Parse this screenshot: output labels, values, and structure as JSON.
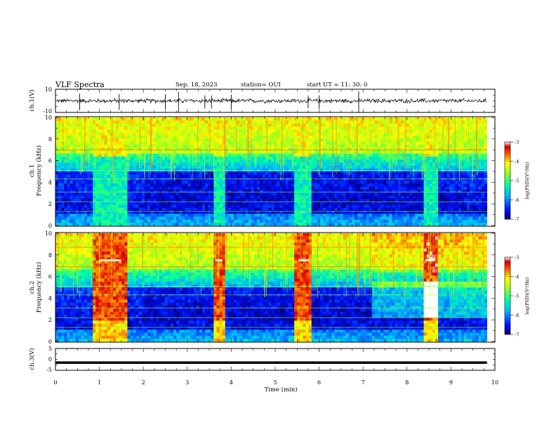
{
  "header": {
    "title": "VLF Spectra",
    "date": "Sep. 18, 2023",
    "station": "station= OUI",
    "start": "start  UT =   11: 30: 0"
  },
  "colorbar": {
    "label": "log(PSD)(V²/Hz)",
    "ticks": [
      "-3",
      "-4",
      "-5",
      "-6",
      "-7"
    ]
  },
  "chart_data": [
    {
      "type": "line",
      "panel": "ch1-waveform",
      "ylabel": "ch.1(V)",
      "ylim": [
        -10,
        10
      ],
      "yticks": [
        "10",
        "-10"
      ],
      "xlim": [
        0,
        10
      ],
      "series": [
        {
          "baseline": 0,
          "typical_amplitude": 1.5,
          "spikes_x": [
            0.55,
            1.45,
            2.5,
            2.8,
            3.4,
            3.55,
            4.0,
            5.75,
            6.0,
            6.9
          ]
        }
      ]
    },
    {
      "type": "heatmap",
      "panel": "ch1-spectrogram",
      "ylabel": "ch.1\nFrequency (kHz)",
      "ylim": [
        0,
        10
      ],
      "yticks": [
        "0",
        "2",
        "4",
        "6",
        "8",
        "10"
      ],
      "xlim": [
        0,
        10
      ],
      "clim": [
        -7,
        -3
      ],
      "bursts_min": [
        [
          0.85,
          1.65
        ],
        [
          3.6,
          3.85
        ],
        [
          5.45,
          5.85
        ],
        [
          8.35,
          8.7
        ]
      ],
      "bands_khz": [
        7.0,
        5.1,
        4.3,
        3.1,
        2.2,
        1.3
      ]
    },
    {
      "type": "heatmap",
      "panel": "ch2-spectrogram",
      "ylabel": "ch.2\nFrequency (kHz)",
      "ylim": [
        0,
        10
      ],
      "yticks": [
        "0",
        "2",
        "4",
        "6",
        "8",
        "10"
      ],
      "xlim": [
        0,
        10
      ],
      "clim": [
        -7,
        -3
      ],
      "bursts_min": [
        [
          0.85,
          1.65
        ],
        [
          3.6,
          3.85
        ],
        [
          5.45,
          5.85
        ],
        [
          8.35,
          8.7
        ]
      ],
      "bands_khz": [
        8.7,
        6.9,
        5.1,
        4.3,
        3.1,
        2.2,
        1.3
      ]
    },
    {
      "type": "line",
      "panel": "ch3-waveform",
      "ylabel": "ch.3(V)",
      "ylim": [
        -5,
        5
      ],
      "yticks": [
        "5",
        "0",
        "-5"
      ],
      "xlim": [
        0,
        10
      ],
      "series": [
        {
          "constant": -1.5
        }
      ]
    }
  ],
  "xaxis": {
    "label": "Time  (min)",
    "ticks": [
      "0",
      "1",
      "2",
      "3",
      "4",
      "5",
      "6",
      "7",
      "8",
      "9",
      "10"
    ],
    "data_end_min": 9.82
  }
}
